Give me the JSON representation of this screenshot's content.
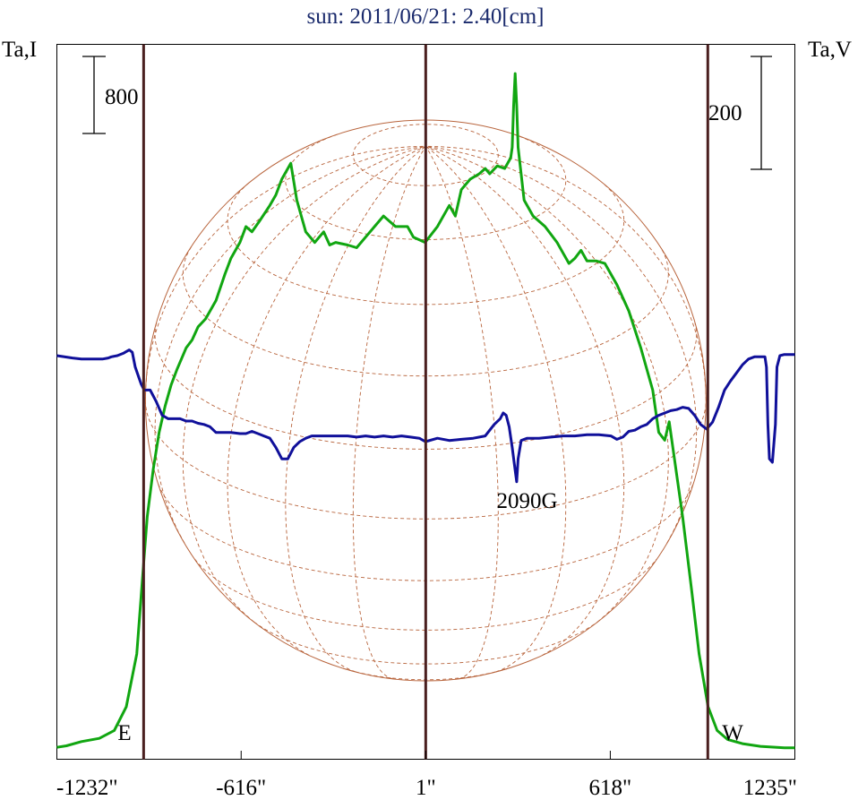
{
  "chart_data": {
    "type": "line",
    "title": "sun: 2011/06/21: 2.40[cm]",
    "left_axis_label": "Ta,I",
    "right_axis_label": "Ta,V",
    "left_scale_bar_label": "800",
    "right_scale_bar_label": "200",
    "xlim": [
      -1232,
      1235
    ],
    "x_ticks": [
      {
        "value": -1232,
        "label": "-1232\""
      },
      {
        "value": -616,
        "label": "-616\""
      },
      {
        "value": 1,
        "label": "1\""
      },
      {
        "value": 618,
        "label": "618\""
      },
      {
        "value": 1235,
        "label": "1235\""
      }
    ],
    "limb_markers": [
      {
        "value": -942,
        "label": "E"
      },
      {
        "value": 1,
        "label": ""
      },
      {
        "value": 944,
        "label": "W"
      }
    ],
    "annotations": [
      {
        "text": "2090G",
        "x": 340
      }
    ],
    "grid": false,
    "colors": {
      "intensity": "#11a611",
      "polarization": "#10109a",
      "disk": "#b8643c",
      "markers": "#4a1f1f",
      "title": "#1a2a6c"
    },
    "series": [
      {
        "color": "#11a611",
        "points": [
          [
            -1232,
            3
          ],
          [
            -1200,
            6
          ],
          [
            -1150,
            14
          ],
          [
            -1090,
            20
          ],
          [
            -1040,
            35
          ],
          [
            -1000,
            80
          ],
          [
            -965,
            180
          ],
          [
            -945,
            330
          ],
          [
            -930,
            440
          ],
          [
            -910,
            530
          ],
          [
            -890,
            600
          ],
          [
            -870,
            650
          ],
          [
            -850,
            690
          ],
          [
            -830,
            720
          ],
          [
            -800,
            760
          ],
          [
            -780,
            775
          ],
          [
            -760,
            800
          ],
          [
            -735,
            815
          ],
          [
            -700,
            850
          ],
          [
            -670,
            900
          ],
          [
            -650,
            930
          ],
          [
            -620,
            960
          ],
          [
            -600,
            990
          ],
          [
            -580,
            980
          ],
          [
            -555,
            1000
          ],
          [
            -520,
            1030
          ],
          [
            -500,
            1050
          ],
          [
            -480,
            1080
          ],
          [
            -450,
            1110
          ],
          [
            -430,
            1040
          ],
          [
            -400,
            980
          ],
          [
            -370,
            960
          ],
          [
            -340,
            980
          ],
          [
            -320,
            955
          ],
          [
            -300,
            960
          ],
          [
            -260,
            955
          ],
          [
            -230,
            950
          ],
          [
            -200,
            970
          ],
          [
            -170,
            990
          ],
          [
            -140,
            1010
          ],
          [
            -100,
            990
          ],
          [
            -60,
            990
          ],
          [
            -40,
            970
          ],
          [
            -1,
            960
          ],
          [
            40,
            990
          ],
          [
            80,
            1030
          ],
          [
            100,
            1010
          ],
          [
            120,
            1060
          ],
          [
            150,
            1080
          ],
          [
            180,
            1090
          ],
          [
            200,
            1100
          ],
          [
            215,
            1090
          ],
          [
            240,
            1105
          ],
          [
            265,
            1100
          ],
          [
            285,
            1120
          ],
          [
            290,
            1140
          ],
          [
            295,
            1220
          ],
          [
            300,
            1280
          ],
          [
            305,
            1220
          ],
          [
            310,
            1140
          ],
          [
            330,
            1040
          ],
          [
            360,
            1010
          ],
          [
            400,
            990
          ],
          [
            440,
            960
          ],
          [
            460,
            940
          ],
          [
            480,
            920
          ],
          [
            500,
            930
          ],
          [
            520,
            945
          ],
          [
            540,
            925
          ],
          [
            570,
            925
          ],
          [
            600,
            920
          ],
          [
            640,
            880
          ],
          [
            680,
            830
          ],
          [
            720,
            760
          ],
          [
            760,
            680
          ],
          [
            780,
            600
          ],
          [
            800,
            585
          ],
          [
            815,
            620
          ],
          [
            830,
            560
          ],
          [
            860,
            440
          ],
          [
            890,
            300
          ],
          [
            915,
            180
          ],
          [
            945,
            80
          ],
          [
            975,
            35
          ],
          [
            1010,
            18
          ],
          [
            1060,
            10
          ],
          [
            1120,
            5
          ],
          [
            1200,
            2
          ],
          [
            1235,
            2
          ]
        ]
      },
      {
        "color": "#10109a",
        "points": [
          [
            -1232,
            0
          ],
          [
            -1180,
            -2
          ],
          [
            -1150,
            -3
          ],
          [
            -1120,
            -3
          ],
          [
            -1080,
            -3
          ],
          [
            -1060,
            -2
          ],
          [
            -1050,
            -1
          ],
          [
            -1030,
            0
          ],
          [
            -1010,
            2
          ],
          [
            -990,
            5
          ],
          [
            -980,
            3
          ],
          [
            -970,
            -10
          ],
          [
            -950,
            -25
          ],
          [
            -940,
            -30
          ],
          [
            -920,
            -30
          ],
          [
            -900,
            -40
          ],
          [
            -880,
            -52
          ],
          [
            -860,
            -55
          ],
          [
            -840,
            -55
          ],
          [
            -820,
            -55
          ],
          [
            -800,
            -57
          ],
          [
            -780,
            -57
          ],
          [
            -760,
            -59
          ],
          [
            -740,
            -60
          ],
          [
            -720,
            -62
          ],
          [
            -700,
            -67
          ],
          [
            -680,
            -67
          ],
          [
            -650,
            -67
          ],
          [
            -620,
            -68
          ],
          [
            -600,
            -68
          ],
          [
            -580,
            -66
          ],
          [
            -560,
            -68
          ],
          [
            -540,
            -70
          ],
          [
            -520,
            -72
          ],
          [
            -500,
            -80
          ],
          [
            -480,
            -90
          ],
          [
            -460,
            -90
          ],
          [
            -440,
            -80
          ],
          [
            -420,
            -75
          ],
          [
            -400,
            -72
          ],
          [
            -380,
            -70
          ],
          [
            -350,
            -70
          ],
          [
            -320,
            -70
          ],
          [
            -290,
            -70
          ],
          [
            -260,
            -70
          ],
          [
            -230,
            -71
          ],
          [
            -200,
            -70
          ],
          [
            -170,
            -71
          ],
          [
            -140,
            -70
          ],
          [
            -110,
            -71
          ],
          [
            -80,
            -70
          ],
          [
            -50,
            -71
          ],
          [
            -20,
            -72
          ],
          [
            0,
            -75
          ],
          [
            40,
            -72
          ],
          [
            80,
            -74
          ],
          [
            120,
            -73
          ],
          [
            160,
            -72
          ],
          [
            200,
            -70
          ],
          [
            230,
            -60
          ],
          [
            250,
            -55
          ],
          [
            260,
            -50
          ],
          [
            270,
            -52
          ],
          [
            280,
            -62
          ],
          [
            290,
            -80
          ],
          [
            300,
            -100
          ],
          [
            305,
            -110
          ],
          [
            310,
            -90
          ],
          [
            320,
            -74
          ],
          [
            340,
            -72
          ],
          [
            380,
            -72
          ],
          [
            420,
            -71
          ],
          [
            460,
            -70
          ],
          [
            500,
            -70
          ],
          [
            540,
            -69
          ],
          [
            580,
            -69
          ],
          [
            620,
            -70
          ],
          [
            640,
            -73
          ],
          [
            660,
            -71
          ],
          [
            680,
            -66
          ],
          [
            700,
            -65
          ],
          [
            720,
            -62
          ],
          [
            740,
            -60
          ],
          [
            760,
            -55
          ],
          [
            780,
            -52
          ],
          [
            800,
            -50
          ],
          [
            820,
            -48
          ],
          [
            840,
            -47
          ],
          [
            860,
            -45
          ],
          [
            880,
            -46
          ],
          [
            900,
            -52
          ],
          [
            920,
            -60
          ],
          [
            940,
            -64
          ],
          [
            960,
            -58
          ],
          [
            980,
            -45
          ],
          [
            1000,
            -30
          ],
          [
            1020,
            -22
          ],
          [
            1040,
            -15
          ],
          [
            1060,
            -8
          ],
          [
            1080,
            -3
          ],
          [
            1100,
            -1
          ],
          [
            1120,
            -1
          ],
          [
            1135,
            -1
          ],
          [
            1140,
            -10
          ],
          [
            1145,
            -60
          ],
          [
            1150,
            -90
          ],
          [
            1160,
            -93
          ],
          [
            1170,
            -60
          ],
          [
            1175,
            -10
          ],
          [
            1185,
            0
          ],
          [
            1200,
            1
          ],
          [
            1235,
            1
          ]
        ]
      }
    ]
  }
}
